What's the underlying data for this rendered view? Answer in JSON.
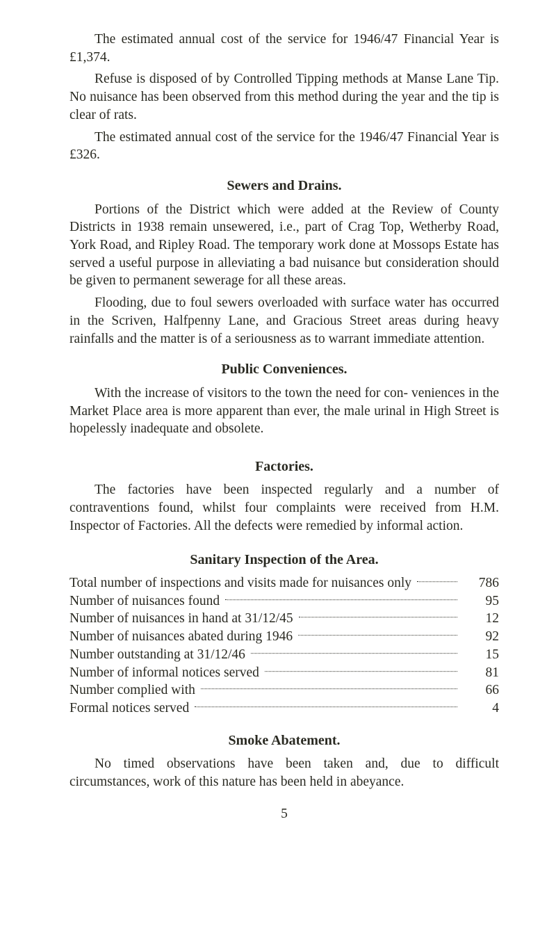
{
  "colors": {
    "text": "#2a2a22",
    "background": "#ffffff"
  },
  "para_cost_1946_47": "The estimated annual cost of the service for 1946/47 Financial Year is £1,374.",
  "para_refuse": "Refuse is disposed of by Controlled Tipping methods at Manse Lane Tip. No nuisance has been observed from this method during the year and the tip is clear of rats.",
  "para_cost_1946_47_b": "The estimated annual cost of the service for the 1946/47 Financial Year is £326.",
  "heading_sewers": "Sewers and Drains.",
  "para_sewers_1": "Portions of the District which were added at the Review of County Districts in 1938 remain unsewered, i.e., part of Crag Top, Wetherby Road, York Road, and Ripley Road. The temporary work done at Mossops Estate has served a useful purpose in alleviating a bad nuisance but consideration should be given to permanent sewerage for all these areas.",
  "para_sewers_2": "Flooding, due to foul sewers overloaded with surface water has occurred in the Scriven, Halfpenny Lane, and Gracious Street areas during heavy rainfalls and the matter is of a seriousness as to warrant immediate attention.",
  "heading_public": "Public Conveniences.",
  "para_public": "With the increase of visitors to the town the need for con- veniences in the Market Place area is more apparent than ever, the male urinal in High Street is hopelessly inadequate and obsolete.",
  "heading_factories": "Factories.",
  "para_factories": "The factories have been inspected regularly and a number of contraventions found, whilst four complaints were received from H.M. Inspector of Factories. All the defects were remedied by informal action.",
  "heading_sanitary": "Sanitary Inspection of the Area.",
  "sanitary_rows": [
    {
      "label": "Total number of inspections and visits made for nuisances only",
      "value": "786"
    },
    {
      "label": "Number of nuisances found",
      "value": "95"
    },
    {
      "label": "Number of nuisances in hand at 31/12/45",
      "value": "12"
    },
    {
      "label": "Number of nuisances abated during 1946",
      "value": "92"
    },
    {
      "label": "Number outstanding at 31/12/46",
      "value": "15"
    },
    {
      "label": "Number of informal notices served",
      "value": "81"
    },
    {
      "label": "Number complied with",
      "value": "66"
    },
    {
      "label": "Formal notices served",
      "value": "4"
    }
  ],
  "heading_smoke": "Smoke Abatement.",
  "para_smoke": "No timed observations have been taken and, due to difficult circumstances, work of this nature has been held in abeyance.",
  "page_number": "5"
}
